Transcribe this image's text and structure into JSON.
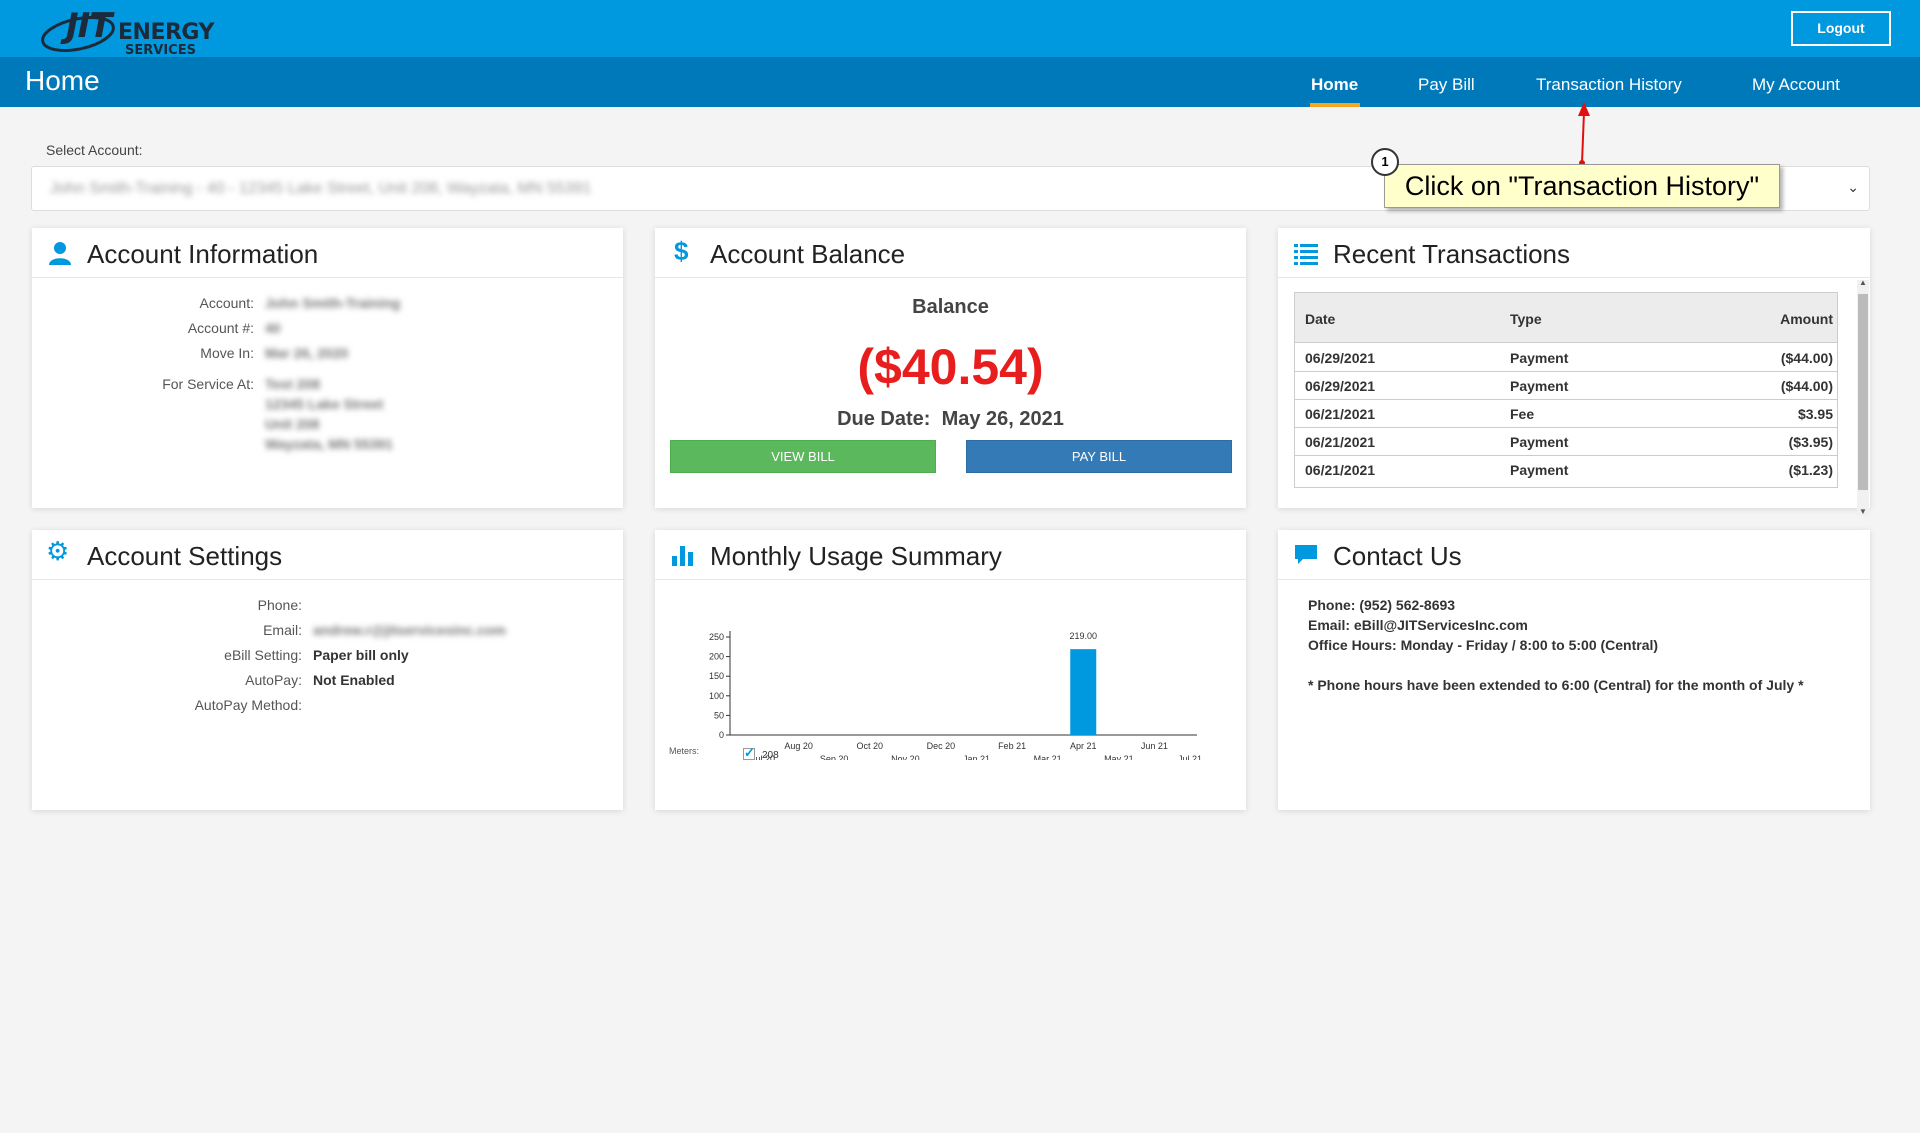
{
  "header": {
    "logo": {
      "line1": "JIT",
      "line2": "ENERGY",
      "line3": "SERVICES"
    },
    "logout_label": "Logout",
    "brand_color": "#0098de"
  },
  "nav": {
    "page_title": "Home",
    "items": [
      {
        "label": "Home",
        "active": true
      },
      {
        "label": "Pay Bill",
        "active": false
      },
      {
        "label": "Transaction History",
        "active": false
      },
      {
        "label": "My Account",
        "active": false
      }
    ],
    "accent": "#f5a623"
  },
  "select_account": {
    "label": "Select Account:",
    "value": "John Smith-Training - 40 - 12345 Lake Street, Unit 208, Wayzata, MN 55391"
  },
  "annotation": {
    "step": "1",
    "text": "Click on \"Transaction History\""
  },
  "account_info": {
    "title": "Account Information",
    "icon": "user-icon",
    "fields": {
      "account_label": "Account:",
      "account_value": "John Smith-Training",
      "number_label": "Account #:",
      "number_value": "40",
      "move_in_label": "Move In:",
      "move_in_value": "Mar 26, 2020",
      "service_label": "For Service At:",
      "service_lines": [
        "Test 208",
        "12345 Lake Street",
        "Unit 208",
        "Wayzata, MN 55391"
      ]
    }
  },
  "balance": {
    "title": "Account Balance",
    "icon": "dollar-icon",
    "heading": "Balance",
    "amount": "($40.54)",
    "due_label": "Due Date:",
    "due_value": "May 26, 2021",
    "view_bill_label": "VIEW BILL",
    "pay_bill_label": "PAY BILL",
    "amount_color": "#e81e1e"
  },
  "transactions": {
    "title": "Recent Transactions",
    "icon": "list-icon",
    "columns": [
      "Date",
      "Type",
      "Amount"
    ],
    "rows": [
      {
        "date": "06/29/2021",
        "type": "Payment",
        "amount": "($44.00)"
      },
      {
        "date": "06/29/2021",
        "type": "Payment",
        "amount": "($44.00)"
      },
      {
        "date": "06/21/2021",
        "type": "Fee",
        "amount": "$3.95"
      },
      {
        "date": "06/21/2021",
        "type": "Payment",
        "amount": "($3.95)"
      },
      {
        "date": "06/21/2021",
        "type": "Payment",
        "amount": "($1.23)"
      }
    ]
  },
  "settings": {
    "title": "Account Settings",
    "icon": "gear-icon",
    "phone_label": "Phone:",
    "phone_value": "",
    "email_label": "Email:",
    "email_value": "andrew.r@jitservicesinc.com",
    "ebill_label": "eBill Setting:",
    "ebill_value": "Paper bill only",
    "autopay_label": "AutoPay:",
    "autopay_value": "Not Enabled",
    "autopay_method_label": "AutoPay Method:",
    "autopay_method_value": ""
  },
  "usage": {
    "title": "Monthly Usage Summary",
    "icon": "bar-chart-icon",
    "meters_label": "Meters:",
    "meter_name": "208"
  },
  "chart_data": {
    "type": "bar",
    "categories": [
      "Jul 20",
      "Aug 20",
      "Sep 20",
      "Oct 20",
      "Nov 20",
      "Dec 20",
      "Jan 21",
      "Feb 21",
      "Mar 21",
      "Apr 21",
      "May 21",
      "Jun 21",
      "Jul 21"
    ],
    "values": [
      0,
      0,
      0,
      0,
      0,
      0,
      0,
      0,
      0,
      219,
      0,
      0,
      0
    ],
    "data_label": "219.00",
    "yticks": [
      "0",
      "50",
      "100",
      "150",
      "200",
      "250"
    ],
    "ylim": [
      0,
      250
    ],
    "series": [
      {
        "name": "208",
        "color": "#0098de"
      }
    ]
  },
  "contact": {
    "title": "Contact Us",
    "icon": "chat-bubble-icon",
    "phone": "Phone: (952) 562-8693",
    "email": "Email: eBill@JITServicesInc.com",
    "hours": "Office Hours: Monday - Friday / 8:00 to 5:00 (Central)",
    "note": "* Phone hours have been extended to 6:00 (Central) for the month of July *"
  }
}
